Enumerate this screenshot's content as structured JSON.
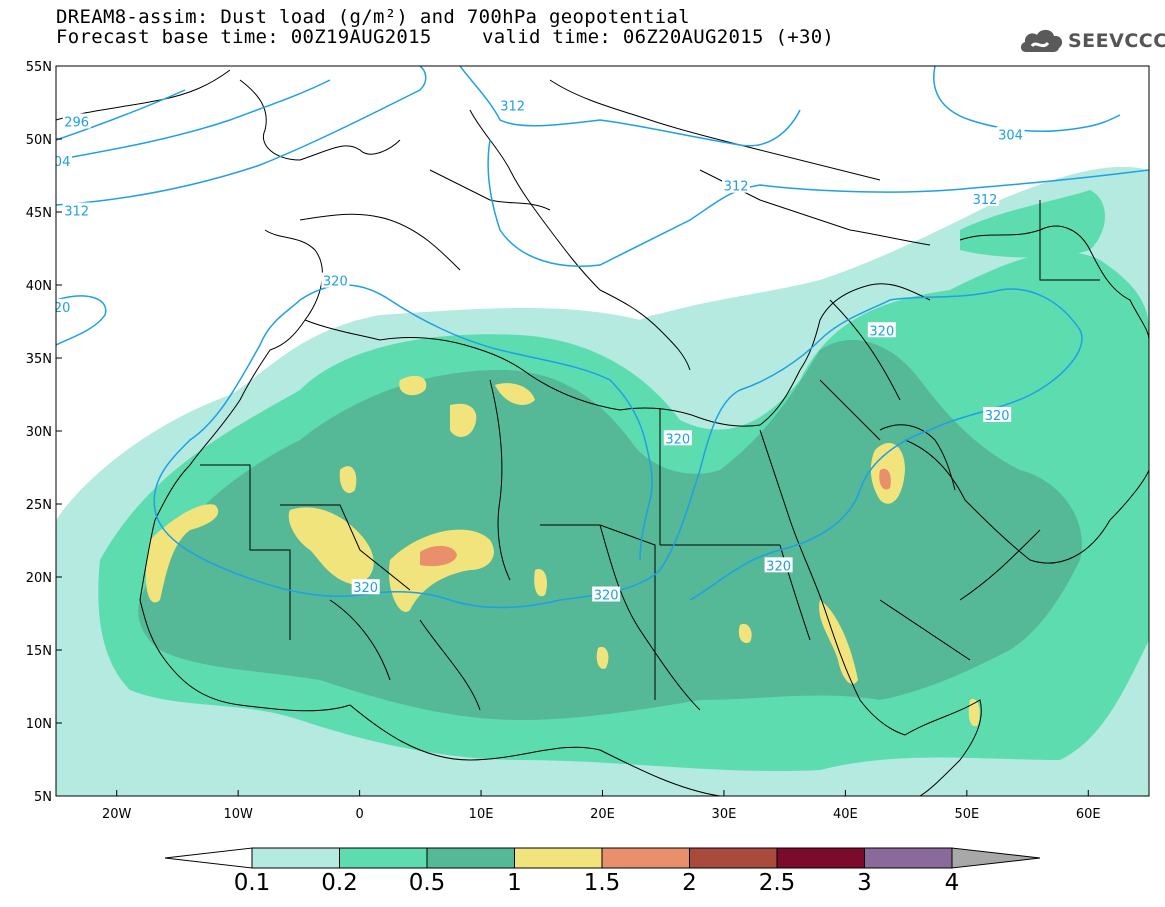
{
  "title": {
    "line1": "DREAM8-assim: Dust load (g/m²) and 700hPa geopotential",
    "line2_left": "Forecast base time: 00Z19AUG2015",
    "line2_right": "valid time: 06Z20AUG2015 (+30)"
  },
  "logo": {
    "text": "SEEVCCC",
    "icon": "cloud-logo-icon"
  },
  "map": {
    "lon_range": [
      -25,
      65
    ],
    "lat_range": [
      5,
      55
    ],
    "lat_ticks": [
      {
        "v": 55,
        "label": "55N"
      },
      {
        "v": 50,
        "label": "50N"
      },
      {
        "v": 45,
        "label": "45N"
      },
      {
        "v": 40,
        "label": "40N"
      },
      {
        "v": 35,
        "label": "35N"
      },
      {
        "v": 30,
        "label": "30N"
      },
      {
        "v": 25,
        "label": "25N"
      },
      {
        "v": 20,
        "label": "20N"
      },
      {
        "v": 15,
        "label": "15N"
      },
      {
        "v": 10,
        "label": "10N"
      },
      {
        "v": 5,
        "label": "5N"
      }
    ],
    "lon_ticks": [
      {
        "v": -20,
        "label": "20W"
      },
      {
        "v": -10,
        "label": "10W"
      },
      {
        "v": 0,
        "label": "0"
      },
      {
        "v": 10,
        "label": "10E"
      },
      {
        "v": 20,
        "label": "20E"
      },
      {
        "v": 30,
        "label": "30E"
      },
      {
        "v": 40,
        "label": "40E"
      },
      {
        "v": 50,
        "label": "50E"
      },
      {
        "v": 60,
        "label": "60E"
      }
    ],
    "contour_labels": [
      {
        "text": "296",
        "lon": -23.3,
        "lat": 51.2
      },
      {
        "text": "04",
        "lon": -24.5,
        "lat": 48.5
      },
      {
        "text": "312",
        "lon": -23.3,
        "lat": 45.1
      },
      {
        "text": "20",
        "lon": -24.5,
        "lat": 38.5
      },
      {
        "text": "312",
        "lon": 12.6,
        "lat": 52.3
      },
      {
        "text": "312",
        "lon": 31.0,
        "lat": 46.8
      },
      {
        "text": "304",
        "lon": 53.6,
        "lat": 50.3
      },
      {
        "text": "312",
        "lon": 51.5,
        "lat": 45.9
      },
      {
        "text": "320",
        "lon": -2.0,
        "lat": 40.3
      },
      {
        "text": "320",
        "lon": 43.0,
        "lat": 36.9
      },
      {
        "text": "320",
        "lon": 52.5,
        "lat": 31.1
      },
      {
        "text": "320",
        "lon": 26.2,
        "lat": 29.5
      },
      {
        "text": "320",
        "lon": 34.5,
        "lat": 20.8
      },
      {
        "text": "320",
        "lon": 0.5,
        "lat": 19.3
      },
      {
        "text": "320",
        "lon": 20.3,
        "lat": 18.8
      }
    ]
  },
  "colorbar": {
    "colors": [
      "#b4eadf",
      "#5ddcb0",
      "#55b896",
      "#f2e47c",
      "#e8906c",
      "#a84a3c",
      "#7c0a2c",
      "#8a6a9a"
    ],
    "left_arrow_color": "#ffffff",
    "right_arrow_color": "#a8a8a8",
    "labels": [
      "0.1",
      "0.2",
      "0.5",
      "1",
      "1.5",
      "2",
      "2.5",
      "3",
      "4"
    ]
  }
}
